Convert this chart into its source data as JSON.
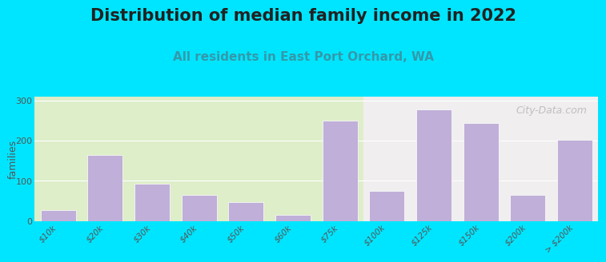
{
  "title": "Distribution of median family income in 2022",
  "subtitle": "All residents in East Port Orchard, WA",
  "ylabel": "families",
  "categories": [
    "$10k",
    "$20k",
    "$30k",
    "$40k",
    "$50k",
    "$60k",
    "$75k",
    "$100k",
    "$125k",
    "$150k",
    "$200k",
    "> $200k"
  ],
  "values": [
    28,
    165,
    93,
    65,
    47,
    15,
    250,
    75,
    278,
    244,
    65,
    203
  ],
  "bar_color": "#c0afd8",
  "background_color": "#00e5ff",
  "plot_bg_color_left": "#ddeec8",
  "plot_bg_color_right": "#f0eeee",
  "ylim": [
    0,
    310
  ],
  "yticks": [
    0,
    100,
    200,
    300
  ],
  "title_fontsize": 15,
  "subtitle_fontsize": 11,
  "subtitle_color": "#3399aa",
  "watermark": "City-Data.com",
  "green_split_index": 7
}
